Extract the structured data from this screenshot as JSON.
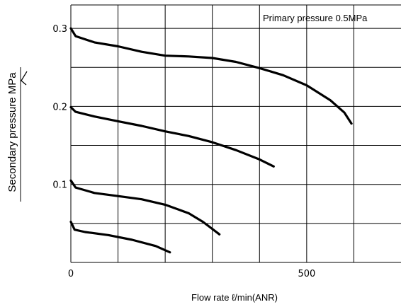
{
  "chart_data": {
    "type": "line",
    "annotation": "Primary pressure 0.5MPa",
    "xlabel": "Flow rate  ℓ/min(ANR)",
    "ylabel": "Secondary pressure MPa",
    "xlim": [
      0,
      700
    ],
    "ylim": [
      0,
      0.33
    ],
    "x_ticks": [
      {
        "value": 0,
        "label": "0"
      },
      {
        "value": 500,
        "label": "500"
      }
    ],
    "y_ticks": [
      {
        "value": 0.1,
        "label": "0.1"
      },
      {
        "value": 0.2,
        "label": "0.2"
      },
      {
        "value": 0.3,
        "label": "0.3"
      }
    ],
    "grid": true,
    "series": [
      {
        "points": [
          [
            0,
            0.3
          ],
          [
            10,
            0.29
          ],
          [
            50,
            0.282
          ],
          [
            100,
            0.277
          ],
          [
            150,
            0.27
          ],
          [
            200,
            0.265
          ],
          [
            250,
            0.264
          ],
          [
            300,
            0.262
          ],
          [
            350,
            0.257
          ],
          [
            400,
            0.249
          ],
          [
            450,
            0.24
          ],
          [
            500,
            0.227
          ],
          [
            550,
            0.208
          ],
          [
            580,
            0.192
          ],
          [
            595,
            0.178
          ]
        ]
      },
      {
        "points": [
          [
            0,
            0.199
          ],
          [
            10,
            0.193
          ],
          [
            50,
            0.187
          ],
          [
            100,
            0.181
          ],
          [
            150,
            0.175
          ],
          [
            200,
            0.168
          ],
          [
            250,
            0.162
          ],
          [
            300,
            0.154
          ],
          [
            350,
            0.144
          ],
          [
            400,
            0.132
          ],
          [
            430,
            0.123
          ]
        ]
      },
      {
        "points": [
          [
            0,
            0.105
          ],
          [
            10,
            0.096
          ],
          [
            50,
            0.089
          ],
          [
            100,
            0.085
          ],
          [
            150,
            0.081
          ],
          [
            200,
            0.074
          ],
          [
            250,
            0.063
          ],
          [
            280,
            0.052
          ],
          [
            300,
            0.043
          ],
          [
            315,
            0.036
          ]
        ]
      },
      {
        "points": [
          [
            0,
            0.052
          ],
          [
            8,
            0.042
          ],
          [
            30,
            0.039
          ],
          [
            80,
            0.035
          ],
          [
            130,
            0.029
          ],
          [
            180,
            0.021
          ],
          [
            210,
            0.013
          ]
        ]
      }
    ]
  }
}
